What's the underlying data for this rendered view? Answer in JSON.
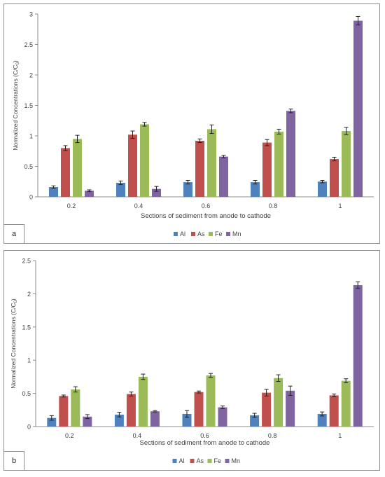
{
  "chart_data": [
    {
      "panel": "a",
      "type": "bar",
      "categories": [
        "0.2",
        "0.4",
        "0.6",
        "0.8",
        "1"
      ],
      "xlabel": "Sections of sediment from anode to cathode",
      "ylabel": "Normalized Concentrations (C/C",
      "ylabel_sub": "0",
      "ylabel_end": ")",
      "ylim": [
        0,
        3
      ],
      "yticks": [
        "0",
        "0.5",
        "1",
        "1.5",
        "2",
        "2.5",
        "3"
      ],
      "legend_position": "bottom",
      "grid": false,
      "series": [
        {
          "name": "Al",
          "color": "#4f81bd",
          "values": [
            0.16,
            0.23,
            0.24,
            0.24,
            0.25
          ],
          "errors": [
            0.02,
            0.03,
            0.03,
            0.03,
            0.02
          ]
        },
        {
          "name": "As",
          "color": "#c0504d",
          "values": [
            0.8,
            1.02,
            0.92,
            0.89,
            0.62
          ],
          "errors": [
            0.04,
            0.06,
            0.03,
            0.05,
            0.03
          ]
        },
        {
          "name": "Fe",
          "color": "#9bbb59",
          "values": [
            0.95,
            1.19,
            1.11,
            1.07,
            1.08
          ],
          "errors": [
            0.06,
            0.03,
            0.07,
            0.04,
            0.06
          ]
        },
        {
          "name": "Mn",
          "color": "#8064a2",
          "values": [
            0.1,
            0.13,
            0.66,
            1.41,
            2.89
          ],
          "errors": [
            0.015,
            0.04,
            0.02,
            0.03,
            0.07
          ]
        }
      ]
    },
    {
      "panel": "b",
      "type": "bar",
      "categories": [
        "0.2",
        "0.4",
        "0.6",
        "0.8",
        "1"
      ],
      "xlabel": "Sections of sediment from anode to cathode",
      "ylabel": "Normalized Concentrations (C/C",
      "ylabel_sub": "0",
      "ylabel_end": ")",
      "ylim": [
        0,
        2.5
      ],
      "yticks": [
        "0",
        "0.5",
        "1",
        "1.5",
        "2",
        "2.5"
      ],
      "legend_position": "bottom",
      "grid": false,
      "series": [
        {
          "name": "Al",
          "color": "#4f81bd",
          "values": [
            0.13,
            0.18,
            0.19,
            0.17,
            0.19
          ],
          "errors": [
            0.035,
            0.035,
            0.05,
            0.03,
            0.03
          ]
        },
        {
          "name": "As",
          "color": "#c0504d",
          "values": [
            0.46,
            0.49,
            0.52,
            0.51,
            0.47
          ],
          "errors": [
            0.015,
            0.03,
            0.015,
            0.05,
            0.02
          ]
        },
        {
          "name": "Fe",
          "color": "#9bbb59",
          "values": [
            0.56,
            0.75,
            0.77,
            0.73,
            0.69
          ],
          "errors": [
            0.04,
            0.04,
            0.03,
            0.05,
            0.03
          ]
        },
        {
          "name": "Mn",
          "color": "#8064a2",
          "values": [
            0.15,
            0.23,
            0.29,
            0.54,
            2.13
          ],
          "errors": [
            0.03,
            0.01,
            0.02,
            0.07,
            0.05
          ]
        }
      ]
    }
  ]
}
